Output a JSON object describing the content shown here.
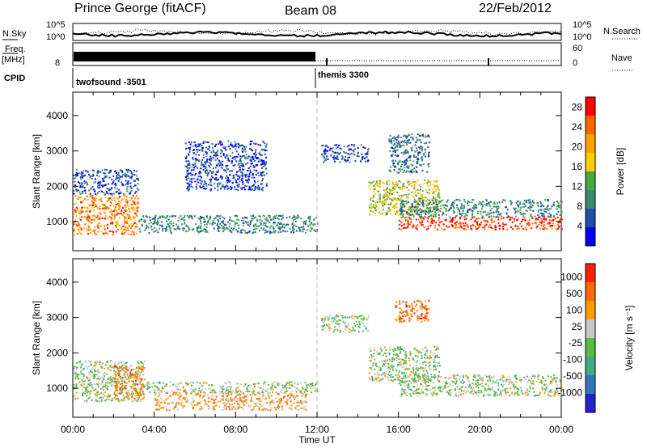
{
  "header": {
    "station": "Prince George (fitACF)",
    "beam": "Beam 08",
    "date": "22/Feb/2012"
  },
  "side_labels": {
    "nsky": "N.Sky",
    "freq_line1": "Freq.",
    "freq_line2": "[MHz]",
    "cpid": "CPID",
    "nsearch": "N.Search",
    "nave": "Nave"
  },
  "strip_ticks": {
    "noise_left_top": "10^5",
    "noise_left_bottom": "10^0",
    "noise_right_top": "10^5",
    "noise_right_bottom": "10^0",
    "freq_left": "8",
    "nave_right_top": "60",
    "nave_right_bottom": "0"
  },
  "cpid_modes": [
    {
      "label": "twofsound -3501",
      "start_hour": 0
    },
    {
      "label": "themis 3300",
      "start_hour": 12
    }
  ],
  "colors": {
    "power_scale": [
      "#0000ff",
      "#1f4fa8",
      "#3d8a70",
      "#44aa44",
      "#ffcc00",
      "#ffa000",
      "#ff6400",
      "#ff0000"
    ],
    "velocity_scale": [
      "#2222cc",
      "#3377bb",
      "#44aa88",
      "#55bb44",
      "#c8c8c8",
      "#ff9900",
      "#ff6a00",
      "#ff2200"
    ],
    "noise_trace": "#000000",
    "midnight_line": "#bbbbbb"
  },
  "chart_data": [
    {
      "type": "heatmap",
      "panel": "power",
      "title": "",
      "xlabel": "",
      "ylabel": "Slant Range [km]",
      "x_ticks": [
        "00:00",
        "04:00",
        "08:00",
        "12:00",
        "16:00",
        "20:00",
        "00:00"
      ],
      "xlim_hours": [
        0,
        24
      ],
      "y_ticks": [
        "1000",
        "2000",
        "3000",
        "4000"
      ],
      "ylim_km": [
        180,
        4660
      ],
      "colorbar_label": "Power [dB]",
      "colorbar_ticks": [
        "4",
        "8",
        "12",
        "16",
        "20",
        "24",
        "28"
      ],
      "colorbar_range": [
        0,
        30
      ],
      "regions": [
        {
          "t0": 0.0,
          "t1": 3.2,
          "r0": 650,
          "r1": 1800,
          "level": 0.75
        },
        {
          "t0": 0.0,
          "t1": 3.2,
          "r0": 1800,
          "r1": 2500,
          "level": 0.2
        },
        {
          "t0": 3.2,
          "t1": 12.0,
          "r0": 700,
          "r1": 1200,
          "level": 0.3
        },
        {
          "t0": 5.5,
          "t1": 9.5,
          "r0": 1900,
          "r1": 3300,
          "level": 0.15
        },
        {
          "t0": 12.2,
          "t1": 14.5,
          "r0": 2700,
          "r1": 3200,
          "level": 0.2
        },
        {
          "t0": 14.5,
          "t1": 18.0,
          "r0": 1200,
          "r1": 2200,
          "level": 0.55
        },
        {
          "t0": 15.5,
          "t1": 17.5,
          "r0": 2400,
          "r1": 3500,
          "level": 0.25
        },
        {
          "t0": 16.0,
          "t1": 24.0,
          "r0": 800,
          "r1": 1150,
          "level": 0.9
        },
        {
          "t0": 16.0,
          "t1": 24.0,
          "r0": 1150,
          "r1": 1650,
          "level": 0.3
        }
      ]
    },
    {
      "type": "heatmap",
      "panel": "velocity",
      "title": "",
      "xlabel": "Time UT",
      "ylabel": "Slant Range [km]",
      "x_ticks": [
        "00:00",
        "04:00",
        "08:00",
        "12:00",
        "16:00",
        "20:00",
        "00:00"
      ],
      "xlim_hours": [
        0,
        24
      ],
      "y_ticks": [
        "1000",
        "2000",
        "3000",
        "4000"
      ],
      "ylim_km": [
        180,
        4660
      ],
      "colorbar_label": "Velocity [m s⁻¹]",
      "colorbar_ticks": [
        "1000",
        "500",
        "100",
        "25",
        "-25",
        "-100",
        "-500",
        "-1000"
      ],
      "regions": [
        {
          "t0": 0.0,
          "t1": 3.5,
          "r0": 650,
          "r1": 1800,
          "level": 0.5
        },
        {
          "t0": 2.0,
          "t1": 3.5,
          "r0": 700,
          "r1": 1700,
          "level": 0.75
        },
        {
          "t0": 4.0,
          "t1": 11.5,
          "r0": 400,
          "r1": 900,
          "level": 0.7
        },
        {
          "t0": 3.5,
          "t1": 12.0,
          "r0": 900,
          "r1": 1200,
          "level": 0.5
        },
        {
          "t0": 12.2,
          "t1": 14.5,
          "r0": 2600,
          "r1": 3100,
          "level": 0.5
        },
        {
          "t0": 14.5,
          "t1": 18.0,
          "r0": 1200,
          "r1": 2200,
          "level": 0.5
        },
        {
          "t0": 15.8,
          "t1": 17.5,
          "r0": 2900,
          "r1": 3500,
          "level": 0.8
        },
        {
          "t0": 16.0,
          "t1": 24.0,
          "r0": 800,
          "r1": 1400,
          "level": 0.5
        }
      ]
    }
  ]
}
